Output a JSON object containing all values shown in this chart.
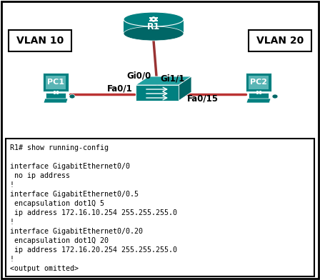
{
  "bg_color": "#ffffff",
  "border_color": "#000000",
  "vlan10_label": "VLAN 10",
  "vlan20_label": "VLAN 20",
  "pc1_label": "PC1",
  "pc2_label": "PC2",
  "router_label": "R1",
  "gi00_label": "Gi0/0",
  "gi11_label": "Gi1/1",
  "fa01_label": "Fa0/1",
  "fa015_label": "Fa0/15",
  "config_lines": [
    "R1# show running-config",
    "",
    "interface GigabitEthernet0/0",
    " no ip address",
    "!",
    "interface GigabitEthernet0/0.5",
    " encapsulation dot1Q 5",
    " ip address 172.16.10.254 255.255.255.0",
    "!",
    "interface GigabitEthernet0/0.20",
    " encapsulation dot1Q 20",
    " ip address 172.16.20.254 255.255.255.0",
    "!",
    "<output omitted>"
  ],
  "teal_color": "#008080",
  "teal_dark": "#006666",
  "teal_light": "#20a0a0",
  "line_color": "#bb3333",
  "router_line_color": "#993333",
  "config_fontsize": 7.2,
  "label_fontsize": 8.5,
  "vlan_fontsize": 10
}
